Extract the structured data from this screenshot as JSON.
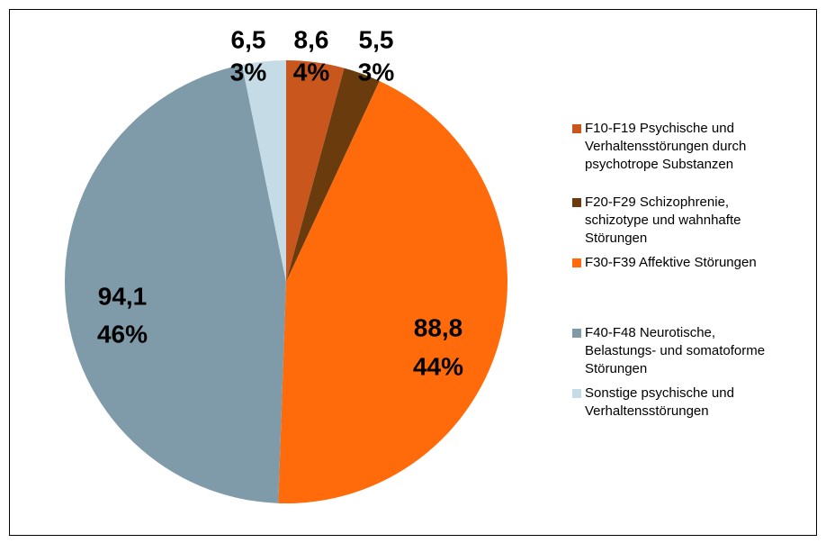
{
  "chart_data": {
    "type": "pie",
    "categories": [
      [
        "F10-F19 Psychische und",
        "Verhaltensstörungen durch",
        "psychotrope Substanzen"
      ],
      [
        "F20-F29 Schizophrenie,",
        "schizotype und wahnhafte",
        "Störungen"
      ],
      [
        "F30-F39 Affektive Störungen"
      ],
      [
        "F40-F48 Neurotische,",
        "Belastungs- und somatoforme",
        "Störungen"
      ],
      [
        "Sonstige psychische und",
        "Verhaltensstörungen"
      ]
    ],
    "values": [
      8.6,
      5.5,
      88.8,
      94.1,
      6.5
    ],
    "value_labels": [
      "8,6",
      "5,5",
      "88,8",
      "94,1",
      "6,5"
    ],
    "percents": [
      4,
      3,
      44,
      46,
      3
    ],
    "percent_labels": [
      "4%",
      "3%",
      "44%",
      "46%",
      "3%"
    ],
    "colors": [
      "#c9561c",
      "#6a3b0c",
      "#ff6a0a",
      "#7f9aa8",
      "#c5dce6"
    ],
    "legend": "right"
  }
}
